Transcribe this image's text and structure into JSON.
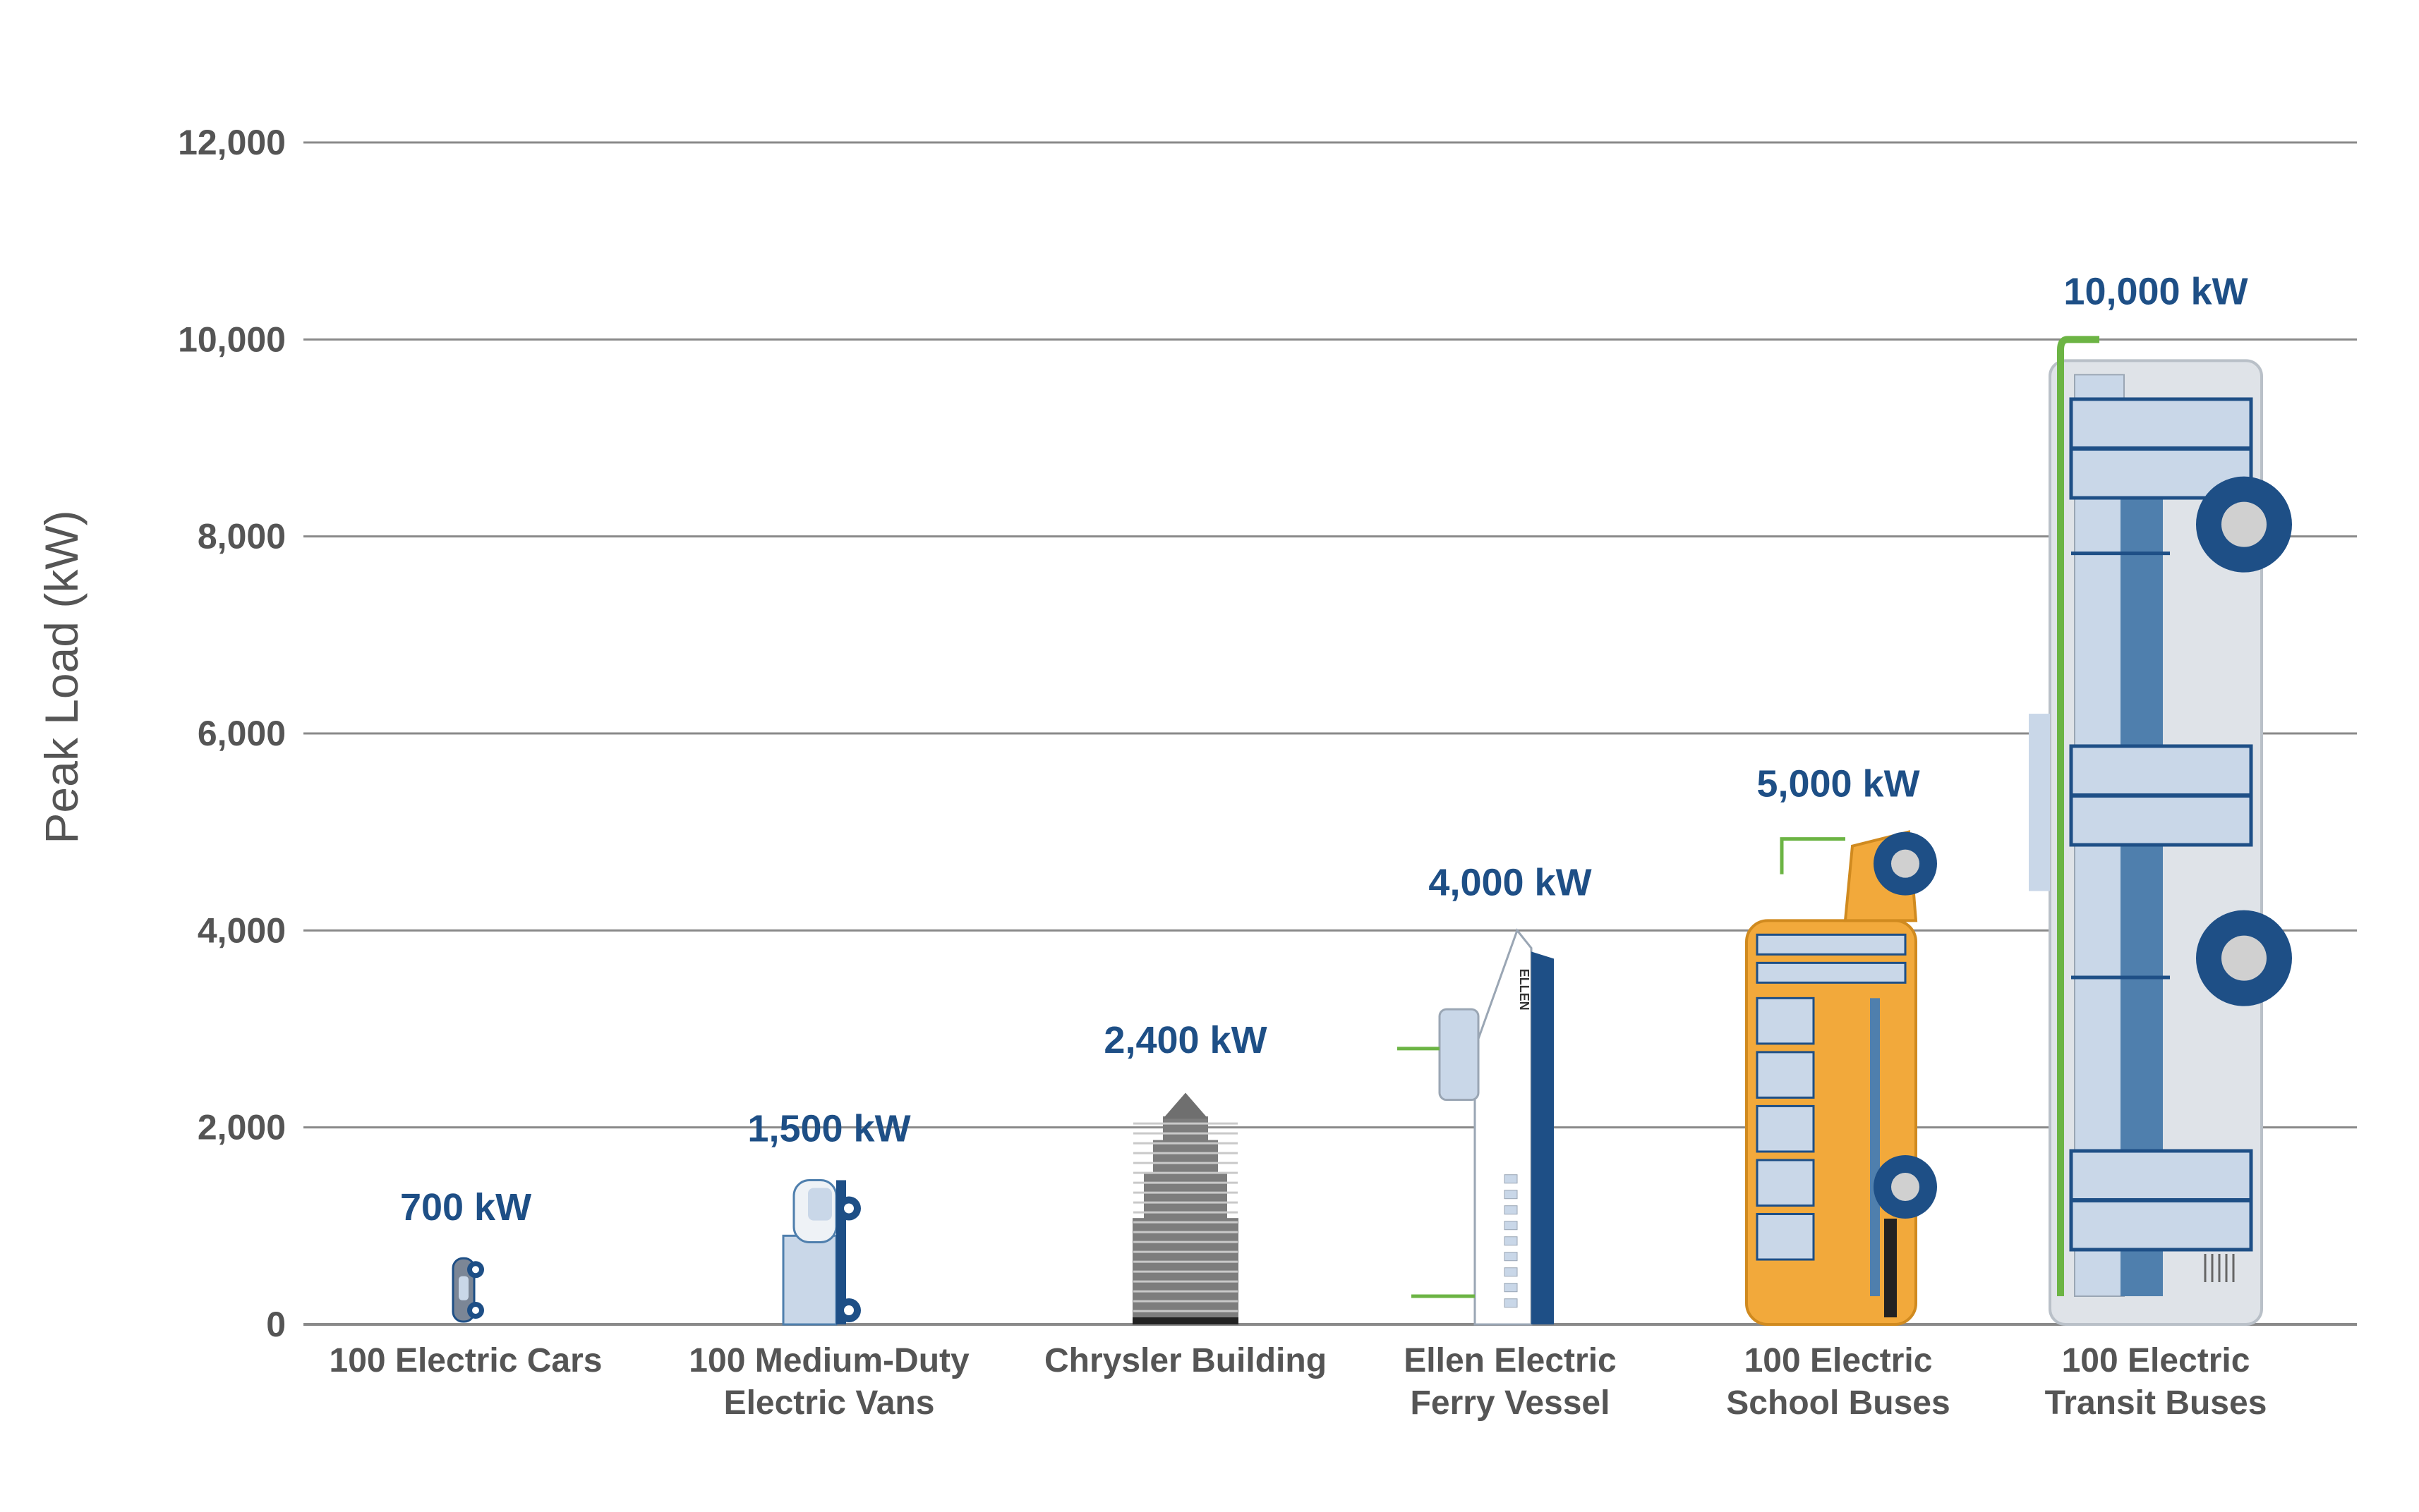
{
  "chart_data": {
    "type": "bar",
    "ylabel": "Peak Load (kW)",
    "ylim": [
      0,
      12000
    ],
    "yticks": [
      0,
      2000,
      4000,
      6000,
      8000,
      10000,
      12000
    ],
    "ytick_labels": [
      "0",
      "2,000",
      "4,000",
      "6,000",
      "8,000",
      "10,000",
      "12,000"
    ],
    "grid": true,
    "bars": [
      {
        "category": [
          "100 Electric Cars"
        ],
        "value": 700,
        "value_label": "700 kW",
        "icon": "electric-car-icon"
      },
      {
        "category": [
          "100 Medium-Duty",
          "Electric Vans"
        ],
        "value": 1500,
        "value_label": "1,500 kW",
        "icon": "electric-van-icon"
      },
      {
        "category": [
          "Chrysler Building"
        ],
        "value": 2400,
        "value_label": "2,400 kW",
        "icon": "chrysler-building-icon"
      },
      {
        "category": [
          "Ellen Electric",
          "Ferry Vessel"
        ],
        "value": 4000,
        "value_label": "4,000 kW",
        "icon": "ferry-vessel-icon",
        "ship_name": "ELLEN"
      },
      {
        "category": [
          "100 Electric",
          "School Buses"
        ],
        "value": 5000,
        "value_label": "5,000 kW",
        "icon": "school-bus-icon"
      },
      {
        "category": [
          "100 Electric",
          "Transit Buses"
        ],
        "value": 10000,
        "value_label": "10,000 kW",
        "icon": "transit-bus-icon"
      }
    ],
    "colors": {
      "value_label": "#1e4f86",
      "axis_text": "#555555",
      "grid": "#8a8a8a",
      "navy": "#1e4f86",
      "light_blue": "#c9d7e8",
      "mid_blue": "#4f7fad",
      "bus_yellow": "#f2a93b",
      "green": "#6cb444",
      "grey_body": "#dfe3e8",
      "building": "#7d7d7d"
    }
  }
}
